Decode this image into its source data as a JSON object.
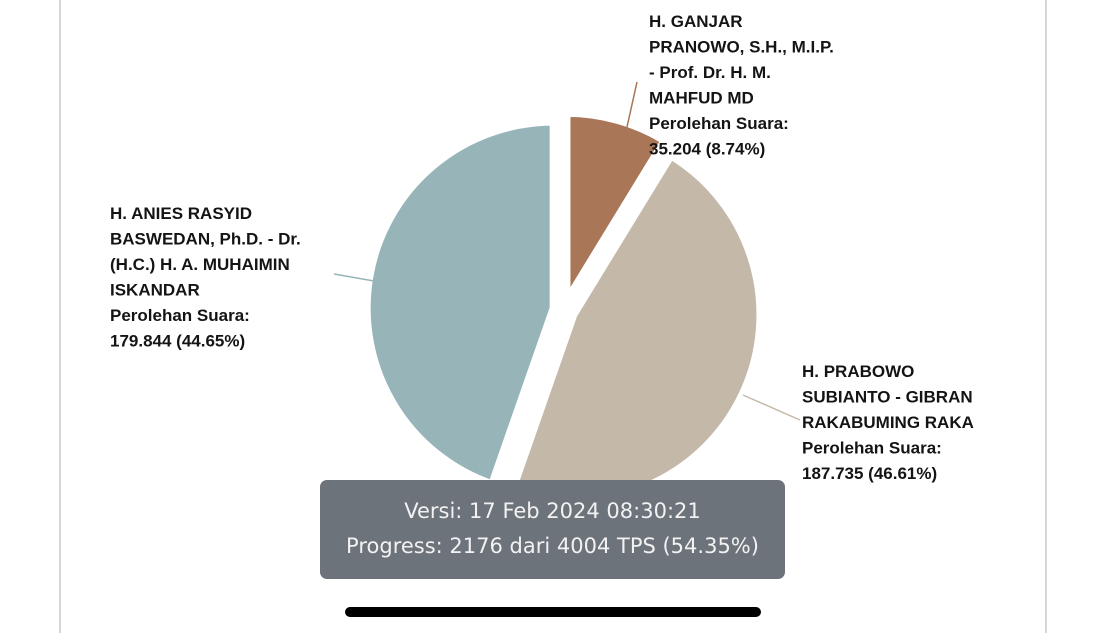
{
  "chart_data": {
    "type": "pie",
    "slices": [
      {
        "id": "ganjar",
        "lines": [
          "H. GANJAR",
          "PRANOWO, S.H., M.I.P.",
          "- Prof. Dr. H. M.",
          "MAHFUD MD",
          "Perolehan Suara:",
          "35.204 (8.74%)"
        ],
        "votes": 35204,
        "percent": 8.74,
        "color": "#a97657"
      },
      {
        "id": "prabowo",
        "lines": [
          "H. PRABOWO",
          "SUBIANTO - GIBRAN",
          "RAKABUMING RAKA",
          "Perolehan Suara:",
          "187.735 (46.61%)"
        ],
        "votes": 187735,
        "percent": 46.61,
        "color": "#c4b8a8"
      },
      {
        "id": "anies",
        "lines": [
          "H. ANIES RASYID",
          "BASWEDAN, Ph.D. - Dr.",
          "(H.C.) H. A. MUHAIMIN",
          "ISKANDAR",
          "Perolehan Suara:",
          "179.844 (44.65%)"
        ],
        "votes": 179844,
        "percent": 44.65,
        "color": "#97b4b9"
      }
    ]
  },
  "info": {
    "version": "Versi: 17 Feb 2024 08:30:21",
    "progress": "Progress: 2176 dari 4004 TPS (54.35%)"
  }
}
